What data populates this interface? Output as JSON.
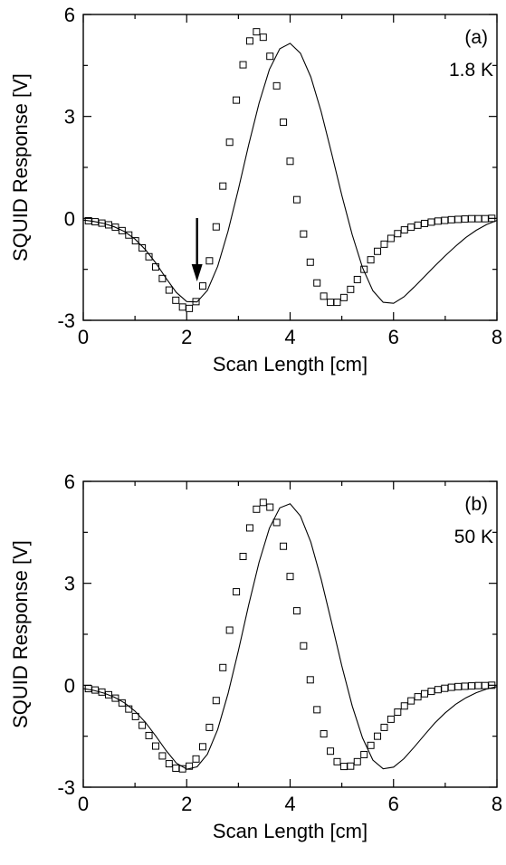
{
  "chart_data": [
    {
      "type": "scatter",
      "panel": "(a)",
      "annotation": "1.8 K",
      "xlabel": "Scan Length [cm]",
      "ylabel": "SQUID Response [V]",
      "xlim": [
        0,
        8
      ],
      "ylim": [
        -3,
        6
      ],
      "xticks": [
        0,
        2,
        4,
        6,
        8
      ],
      "yticks": [
        -3,
        0,
        3,
        6
      ],
      "xtick_labels": [
        "0",
        "2",
        "4",
        "6",
        "8"
      ],
      "ytick_labels": [
        "-3",
        "0",
        "3",
        "6"
      ],
      "arrow_at_x": 2.2,
      "series": [
        {
          "marker": "open-square",
          "x": [
            0.1,
            0.23,
            0.36,
            0.49,
            0.62,
            0.75,
            0.88,
            1.01,
            1.14,
            1.27,
            1.4,
            1.53,
            1.66,
            1.79,
            1.92,
            2.05,
            2.18,
            2.31,
            2.44,
            2.57,
            2.7,
            2.83,
            2.96,
            3.09,
            3.22,
            3.35,
            3.48,
            3.61,
            3.74,
            3.87,
            4.0,
            4.13,
            4.26,
            4.39,
            4.52,
            4.65,
            4.78,
            4.91,
            5.04,
            5.17,
            5.3,
            5.43,
            5.56,
            5.69,
            5.82,
            5.95,
            6.08,
            6.21,
            6.34,
            6.47,
            6.6,
            6.73,
            6.86,
            6.99,
            7.12,
            7.25,
            7.38,
            7.51,
            7.64,
            7.77,
            7.9
          ],
          "y": [
            -0.07,
            -0.1,
            -0.14,
            -0.19,
            -0.26,
            -0.36,
            -0.49,
            -0.66,
            -0.87,
            -1.13,
            -1.43,
            -1.77,
            -2.11,
            -2.41,
            -2.61,
            -2.65,
            -2.45,
            -1.99,
            -1.25,
            -0.25,
            0.95,
            2.24,
            3.48,
            4.52,
            5.22,
            5.49,
            5.33,
            4.77,
            3.9,
            2.83,
            1.68,
            0.55,
            -0.46,
            -1.29,
            -1.9,
            -2.29,
            -2.47,
            -2.47,
            -2.33,
            -2.09,
            -1.8,
            -1.5,
            -1.22,
            -0.97,
            -0.76,
            -0.59,
            -0.45,
            -0.34,
            -0.26,
            -0.2,
            -0.15,
            -0.11,
            -0.08,
            -0.06,
            -0.04,
            -0.03,
            -0.02,
            -0.01,
            -0.01,
            -0.01,
            0.0
          ]
        },
        {
          "marker": "none",
          "line": "solid",
          "x": [
            0.0,
            0.2,
            0.4,
            0.6,
            0.8,
            1.0,
            1.2,
            1.4,
            1.6,
            1.8,
            2.0,
            2.2,
            2.4,
            2.6,
            2.8,
            3.0,
            3.2,
            3.4,
            3.6,
            3.8,
            4.0,
            4.2,
            4.4,
            4.6,
            4.8,
            5.0,
            5.2,
            5.4,
            5.6,
            5.8,
            6.0,
            6.2,
            6.4,
            6.6,
            6.8,
            7.0,
            7.2,
            7.4,
            7.6,
            7.8,
            8.0
          ],
          "y": [
            -0.05,
            -0.09,
            -0.15,
            -0.25,
            -0.39,
            -0.61,
            -0.92,
            -1.31,
            -1.76,
            -2.18,
            -2.45,
            -2.46,
            -2.12,
            -1.41,
            -0.38,
            0.86,
            2.17,
            3.39,
            4.38,
            4.99,
            5.15,
            4.86,
            4.16,
            3.14,
            1.93,
            0.68,
            -0.48,
            -1.45,
            -2.13,
            -2.47,
            -2.5,
            -2.31,
            -2.02,
            -1.71,
            -1.4,
            -1.1,
            -0.82,
            -0.56,
            -0.35,
            -0.18,
            -0.06
          ]
        }
      ]
    },
    {
      "type": "scatter",
      "panel": "(b)",
      "annotation": "50 K",
      "xlabel": "Scan Length [cm]",
      "ylabel": "SQUID Response [V]",
      "xlim": [
        0,
        8
      ],
      "ylim": [
        -3,
        6
      ],
      "xticks": [
        0,
        2,
        4,
        6,
        8
      ],
      "yticks": [
        -3,
        0,
        3,
        6
      ],
      "xtick_labels": [
        "0",
        "2",
        "4",
        "6",
        "8"
      ],
      "ytick_labels": [
        "-3",
        "0",
        "3",
        "6"
      ],
      "series": [
        {
          "marker": "open-square",
          "x": [
            0.1,
            0.23,
            0.36,
            0.49,
            0.62,
            0.75,
            0.88,
            1.01,
            1.14,
            1.27,
            1.4,
            1.53,
            1.66,
            1.79,
            1.92,
            2.05,
            2.18,
            2.31,
            2.44,
            2.57,
            2.7,
            2.83,
            2.96,
            3.09,
            3.22,
            3.35,
            3.48,
            3.61,
            3.74,
            3.87,
            4.0,
            4.13,
            4.26,
            4.39,
            4.52,
            4.65,
            4.78,
            4.91,
            5.04,
            5.17,
            5.3,
            5.43,
            5.56,
            5.69,
            5.82,
            5.95,
            6.08,
            6.21,
            6.34,
            6.47,
            6.6,
            6.73,
            6.86,
            6.99,
            7.12,
            7.25,
            7.38,
            7.51,
            7.64,
            7.77,
            7.9
          ],
          "y": [
            -0.1,
            -0.14,
            -0.2,
            -0.28,
            -0.38,
            -0.52,
            -0.7,
            -0.92,
            -1.18,
            -1.48,
            -1.79,
            -2.08,
            -2.31,
            -2.44,
            -2.46,
            -2.38,
            -2.17,
            -1.81,
            -1.24,
            -0.45,
            0.52,
            1.62,
            2.75,
            3.79,
            4.63,
            5.18,
            5.38,
            5.24,
            4.79,
            4.09,
            3.2,
            2.19,
            1.16,
            0.16,
            -0.72,
            -1.43,
            -1.94,
            -2.25,
            -2.39,
            -2.38,
            -2.25,
            -2.04,
            -1.77,
            -1.5,
            -1.24,
            -1.0,
            -0.79,
            -0.61,
            -0.46,
            -0.34,
            -0.25,
            -0.18,
            -0.13,
            -0.09,
            -0.06,
            -0.04,
            -0.03,
            -0.02,
            -0.01,
            -0.01,
            0.0
          ]
        },
        {
          "marker": "none",
          "line": "solid",
          "x": [
            0.0,
            0.2,
            0.4,
            0.6,
            0.8,
            1.0,
            1.2,
            1.4,
            1.6,
            1.8,
            2.0,
            2.2,
            2.4,
            2.6,
            2.8,
            3.0,
            3.2,
            3.4,
            3.6,
            3.8,
            4.0,
            4.2,
            4.4,
            4.6,
            4.8,
            5.0,
            5.2,
            5.4,
            5.6,
            5.8,
            6.0,
            6.2,
            6.4,
            6.6,
            6.8,
            7.0,
            7.2,
            7.4,
            7.6,
            7.8,
            8.0
          ],
          "y": [
            -0.1,
            -0.15,
            -0.23,
            -0.35,
            -0.52,
            -0.76,
            -1.09,
            -1.49,
            -1.92,
            -2.29,
            -2.47,
            -2.4,
            -2.03,
            -1.3,
            -0.25,
            1.02,
            2.37,
            3.62,
            4.62,
            5.22,
            5.34,
            4.98,
            4.21,
            3.12,
            1.86,
            0.57,
            -0.61,
            -1.55,
            -2.2,
            -2.46,
            -2.41,
            -2.16,
            -1.82,
            -1.46,
            -1.11,
            -0.81,
            -0.56,
            -0.37,
            -0.22,
            -0.11,
            -0.04
          ]
        }
      ]
    }
  ]
}
